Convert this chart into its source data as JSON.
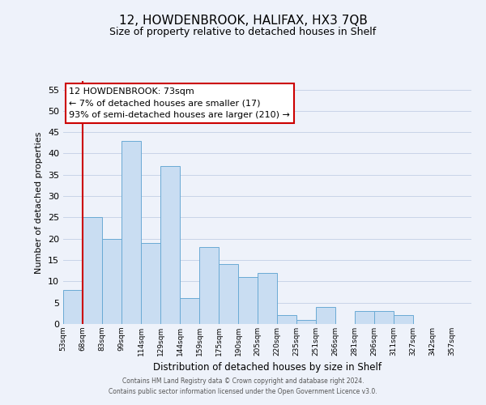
{
  "title": "12, HOWDENBROOK, HALIFAX, HX3 7QB",
  "subtitle": "Size of property relative to detached houses in Shelf",
  "xlabel": "Distribution of detached houses by size in Shelf",
  "ylabel": "Number of detached properties",
  "bar_labels": [
    "53sqm",
    "68sqm",
    "83sqm",
    "99sqm",
    "114sqm",
    "129sqm",
    "144sqm",
    "159sqm",
    "175sqm",
    "190sqm",
    "205sqm",
    "220sqm",
    "235sqm",
    "251sqm",
    "266sqm",
    "281sqm",
    "296sqm",
    "311sqm",
    "327sqm",
    "342sqm",
    "357sqm"
  ],
  "bar_values": [
    8,
    25,
    20,
    43,
    19,
    37,
    6,
    18,
    14,
    11,
    12,
    2,
    1,
    4,
    0,
    3,
    3,
    2,
    0,
    0,
    0
  ],
  "bar_color": "#c9ddf2",
  "bar_edge_color": "#6aaad4",
  "ylim": [
    0,
    57
  ],
  "yticks": [
    0,
    5,
    10,
    15,
    20,
    25,
    30,
    35,
    40,
    45,
    50,
    55
  ],
  "vline_x": 1.0,
  "vline_color": "#cc0000",
  "annotation_title": "12 HOWDENBROOK: 73sqm",
  "annotation_line1": "← 7% of detached houses are smaller (17)",
  "annotation_line2": "93% of semi-detached houses are larger (210) →",
  "annotation_box_color": "#ffffff",
  "annotation_border_color": "#cc0000",
  "footer1": "Contains HM Land Registry data © Crown copyright and database right 2024.",
  "footer2": "Contains public sector information licensed under the Open Government Licence v3.0.",
  "grid_color": "#c8d4e8",
  "background_color": "#eef2fa"
}
